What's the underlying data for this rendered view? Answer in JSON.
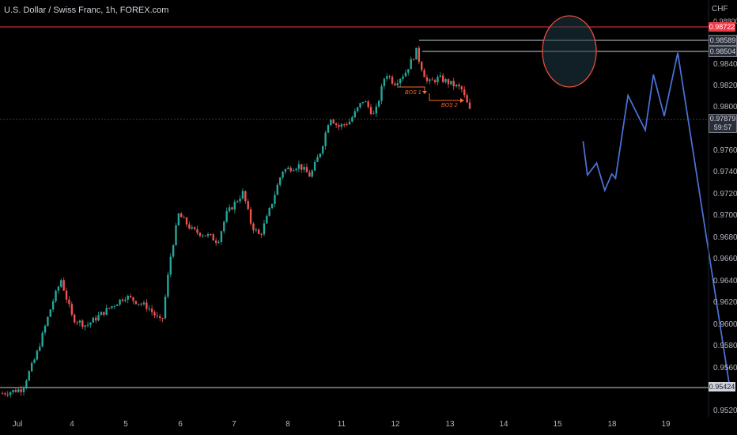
{
  "header": {
    "symbol_title": "U.S. Dollar / Swiss Franc, 1h, FOREX.com",
    "currency": "CHF"
  },
  "price_axis": {
    "ticks": [
      "0.98800",
      "0.98400",
      "0.98200",
      "0.98000",
      "0.97600",
      "0.97400",
      "0.97200",
      "0.97000",
      "0.96800",
      "0.96600",
      "0.96400",
      "0.96200",
      "0.96000",
      "0.95800",
      "0.95600",
      "0.95200"
    ]
  },
  "time_axis": {
    "labels": [
      "Jul",
      "4",
      "5",
      "6",
      "7",
      "8",
      "11",
      "12",
      "13",
      "14",
      "15",
      "18",
      "19"
    ]
  },
  "price_tags": {
    "resistance": "0.98722",
    "high_1": "0.98589",
    "high_2": "0.98504",
    "current_price": "0.97879",
    "countdown": "59:57",
    "support": "0.95424"
  },
  "annotations": {
    "bos1": "BOS 1",
    "bos2": "BOS 2"
  },
  "colors": {
    "up_candle": "#26a69a",
    "down_candle": "#ef5350",
    "projection_line": "#4a72d6",
    "resistance_line": "#f23645",
    "level_line": "#c9ccd4",
    "circle": "#e74c3c",
    "bos": "#ff6a2b"
  },
  "projection_path": [
    [
      13.45,
      0.9767
    ],
    [
      13.53,
      0.9736
    ],
    [
      13.7,
      0.9747
    ],
    [
      13.85,
      0.9722
    ],
    [
      13.98,
      0.9737
    ],
    [
      14.05,
      0.9733
    ],
    [
      14.28,
      0.9809
    ],
    [
      14.6,
      0.9777
    ],
    [
      14.75,
      0.9828
    ],
    [
      14.95,
      0.979
    ],
    [
      15.2,
      0.9848
    ],
    [
      16.15,
      0.9545
    ]
  ]
}
